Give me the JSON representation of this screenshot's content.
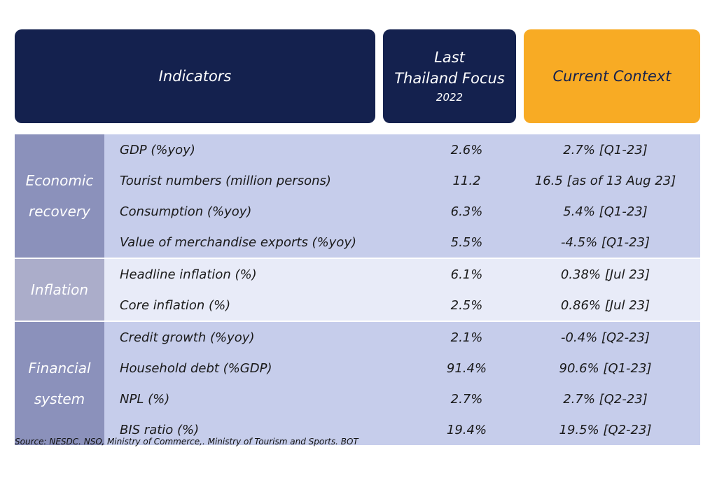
{
  "header": {
    "indicators": "Indicators",
    "last_line1": "Last",
    "last_line2": "Thailand Focus",
    "last_year": "2022",
    "current": "Current Context"
  },
  "groups": [
    {
      "label_line1": "Economic",
      "label_line2": "recovery",
      "rows": [
        {
          "indicator": "GDP (%yoy)",
          "last": "2.6%",
          "current": "2.7% [Q1-23]"
        },
        {
          "indicator": "Tourist numbers (million persons)",
          "last": "11.2",
          "current": "16.5 [as of 13 Aug 23]"
        },
        {
          "indicator": "Consumption (%yoy)",
          "last": "6.3%",
          "current": "5.4% [Q1-23]"
        },
        {
          "indicator": "Value of merchandise exports (%yoy)",
          "last": "5.5%",
          "current": "-4.5% [Q1-23]"
        }
      ]
    },
    {
      "label_line1": "Inflation",
      "label_line2": "",
      "rows": [
        {
          "indicator": "Headline inflation (%)",
          "last": "6.1%",
          "current": "0.38% [Jul 23]"
        },
        {
          "indicator": "Core inflation (%)",
          "last": "2.5%",
          "current": "0.86% [Jul 23]"
        }
      ]
    },
    {
      "label_line1": "Financial",
      "label_line2": "system",
      "rows": [
        {
          "indicator": "Credit growth (%yoy)",
          "last": "2.1%",
          "current": "-0.4% [Q2-23]"
        },
        {
          "indicator": "Household debt (%GDP)",
          "last": "91.4%",
          "current": "90.6% [Q1-23]"
        },
        {
          "indicator": "NPL (%)",
          "last": "2.7%",
          "current": "2.7% [Q2-23]"
        },
        {
          "indicator": "BIS ratio (%)",
          "last": "19.4%",
          "current": "19.5% [Q2-23]"
        }
      ]
    }
  ],
  "source": "Source: NESDC. NSO, Ministry of Commerce,. Ministry of Tourism and Sports. BOT"
}
